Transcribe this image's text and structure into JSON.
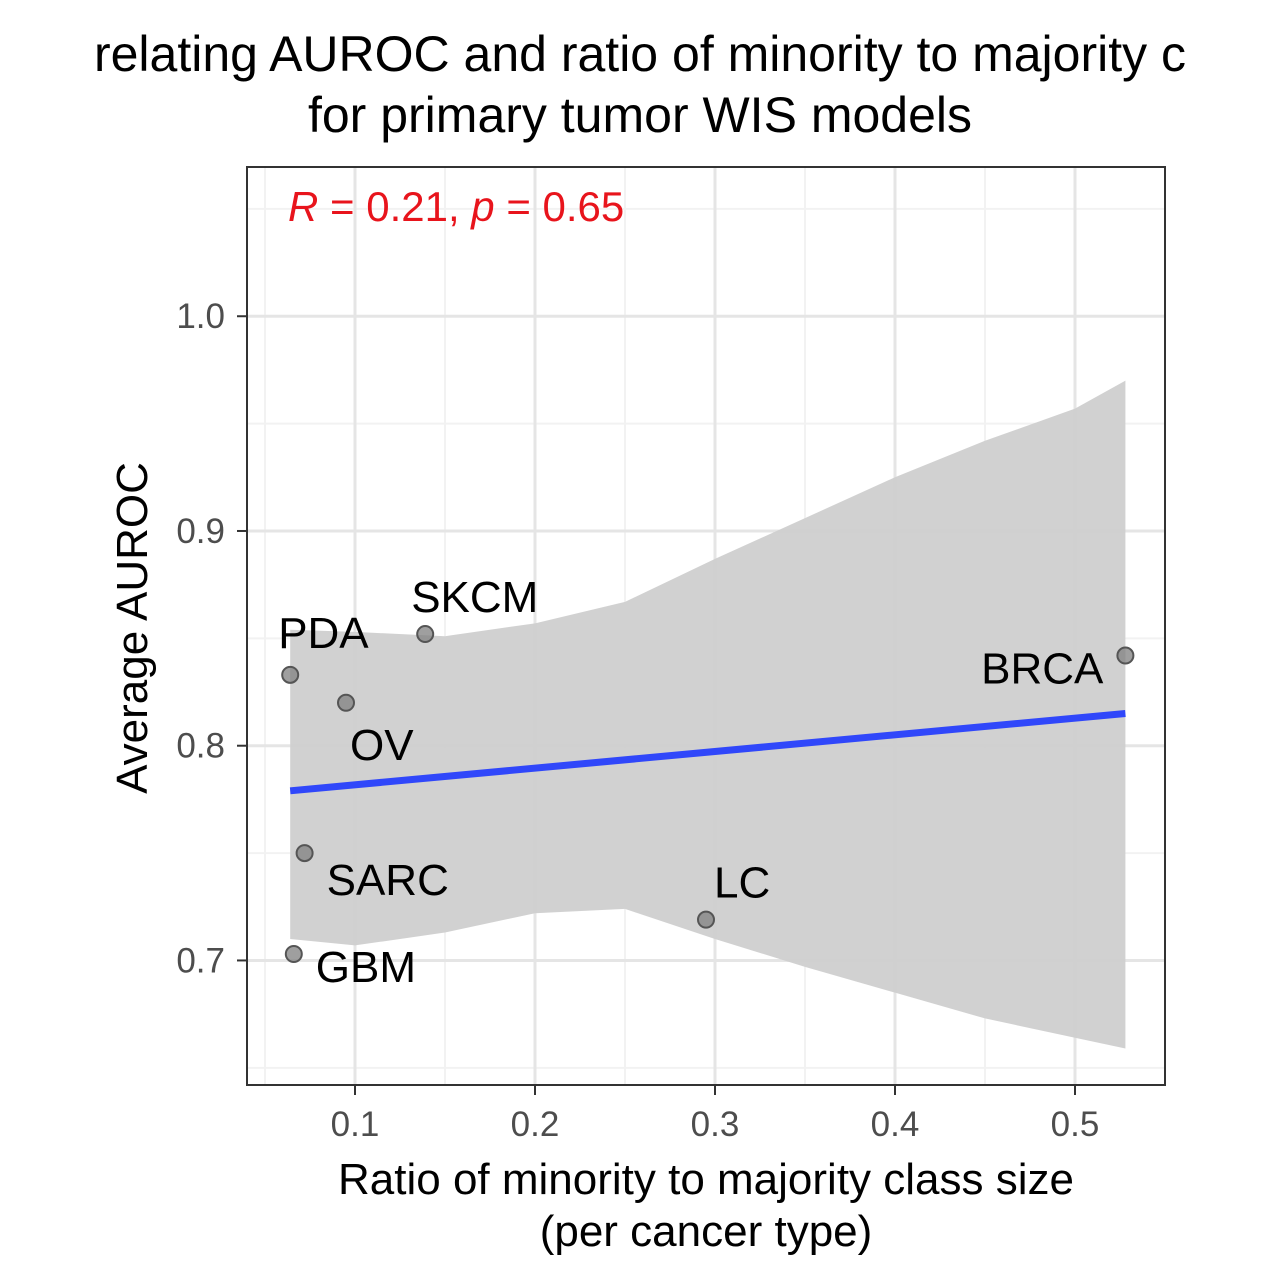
{
  "chart_data": {
    "type": "scatter",
    "title": [
      "relating AUROC and ratio of minority to majority c",
      "for primary tumor WIS models"
    ],
    "xlabel": [
      "Ratio of minority to majority class size",
      "(per cancer type)"
    ],
    "ylabel": "Average AUROC",
    "xlim": [
      0.04,
      0.55
    ],
    "ylim": [
      0.642,
      1.0695
    ],
    "x_ticks": [
      0.1,
      0.2,
      0.3,
      0.4,
      0.5
    ],
    "x_tick_labels": [
      "0.1",
      "0.2",
      "0.3",
      "0.4",
      "0.5"
    ],
    "y_ticks": [
      0.7,
      0.8,
      0.9,
      1.0
    ],
    "y_tick_labels": [
      "0.7",
      "0.8",
      "0.9",
      "1.0"
    ],
    "grid": true,
    "points": [
      {
        "label": "PDA",
        "x": 0.064,
        "y": 0.833
      },
      {
        "label": "GBM",
        "x": 0.066,
        "y": 0.703
      },
      {
        "label": "SARC",
        "x": 0.072,
        "y": 0.75
      },
      {
        "label": "OV",
        "x": 0.095,
        "y": 0.82
      },
      {
        "label": "SKCM",
        "x": 0.139,
        "y": 0.852
      },
      {
        "label": "LC",
        "x": 0.295,
        "y": 0.719
      },
      {
        "label": "BRCA",
        "x": 0.528,
        "y": 0.842
      }
    ],
    "regression": {
      "x": [
        0.064,
        0.528
      ],
      "y": [
        0.779,
        0.815
      ]
    },
    "confidence_band": {
      "x": [
        0.064,
        0.1,
        0.15,
        0.2,
        0.25,
        0.3,
        0.35,
        0.4,
        0.45,
        0.5,
        0.528
      ],
      "upper": [
        0.854,
        0.853,
        0.851,
        0.857,
        0.867,
        0.887,
        0.906,
        0.925,
        0.942,
        0.957,
        0.97
      ],
      "lower": [
        0.71,
        0.707,
        0.713,
        0.722,
        0.724,
        0.71,
        0.697,
        0.685,
        0.673,
        0.664,
        0.659
      ]
    },
    "annotation": {
      "r_label": "R",
      "r_value": " = 0.21, ",
      "p_label": "p",
      "p_value": " = 0.65"
    },
    "colors": {
      "regression_line": "#3047fa",
      "band": "#cfcfcf",
      "points": "#7f7f7f",
      "annotation": "#e8141c",
      "grid_major": "#e5e5e5",
      "grid_minor": "#f2f2f2"
    }
  }
}
